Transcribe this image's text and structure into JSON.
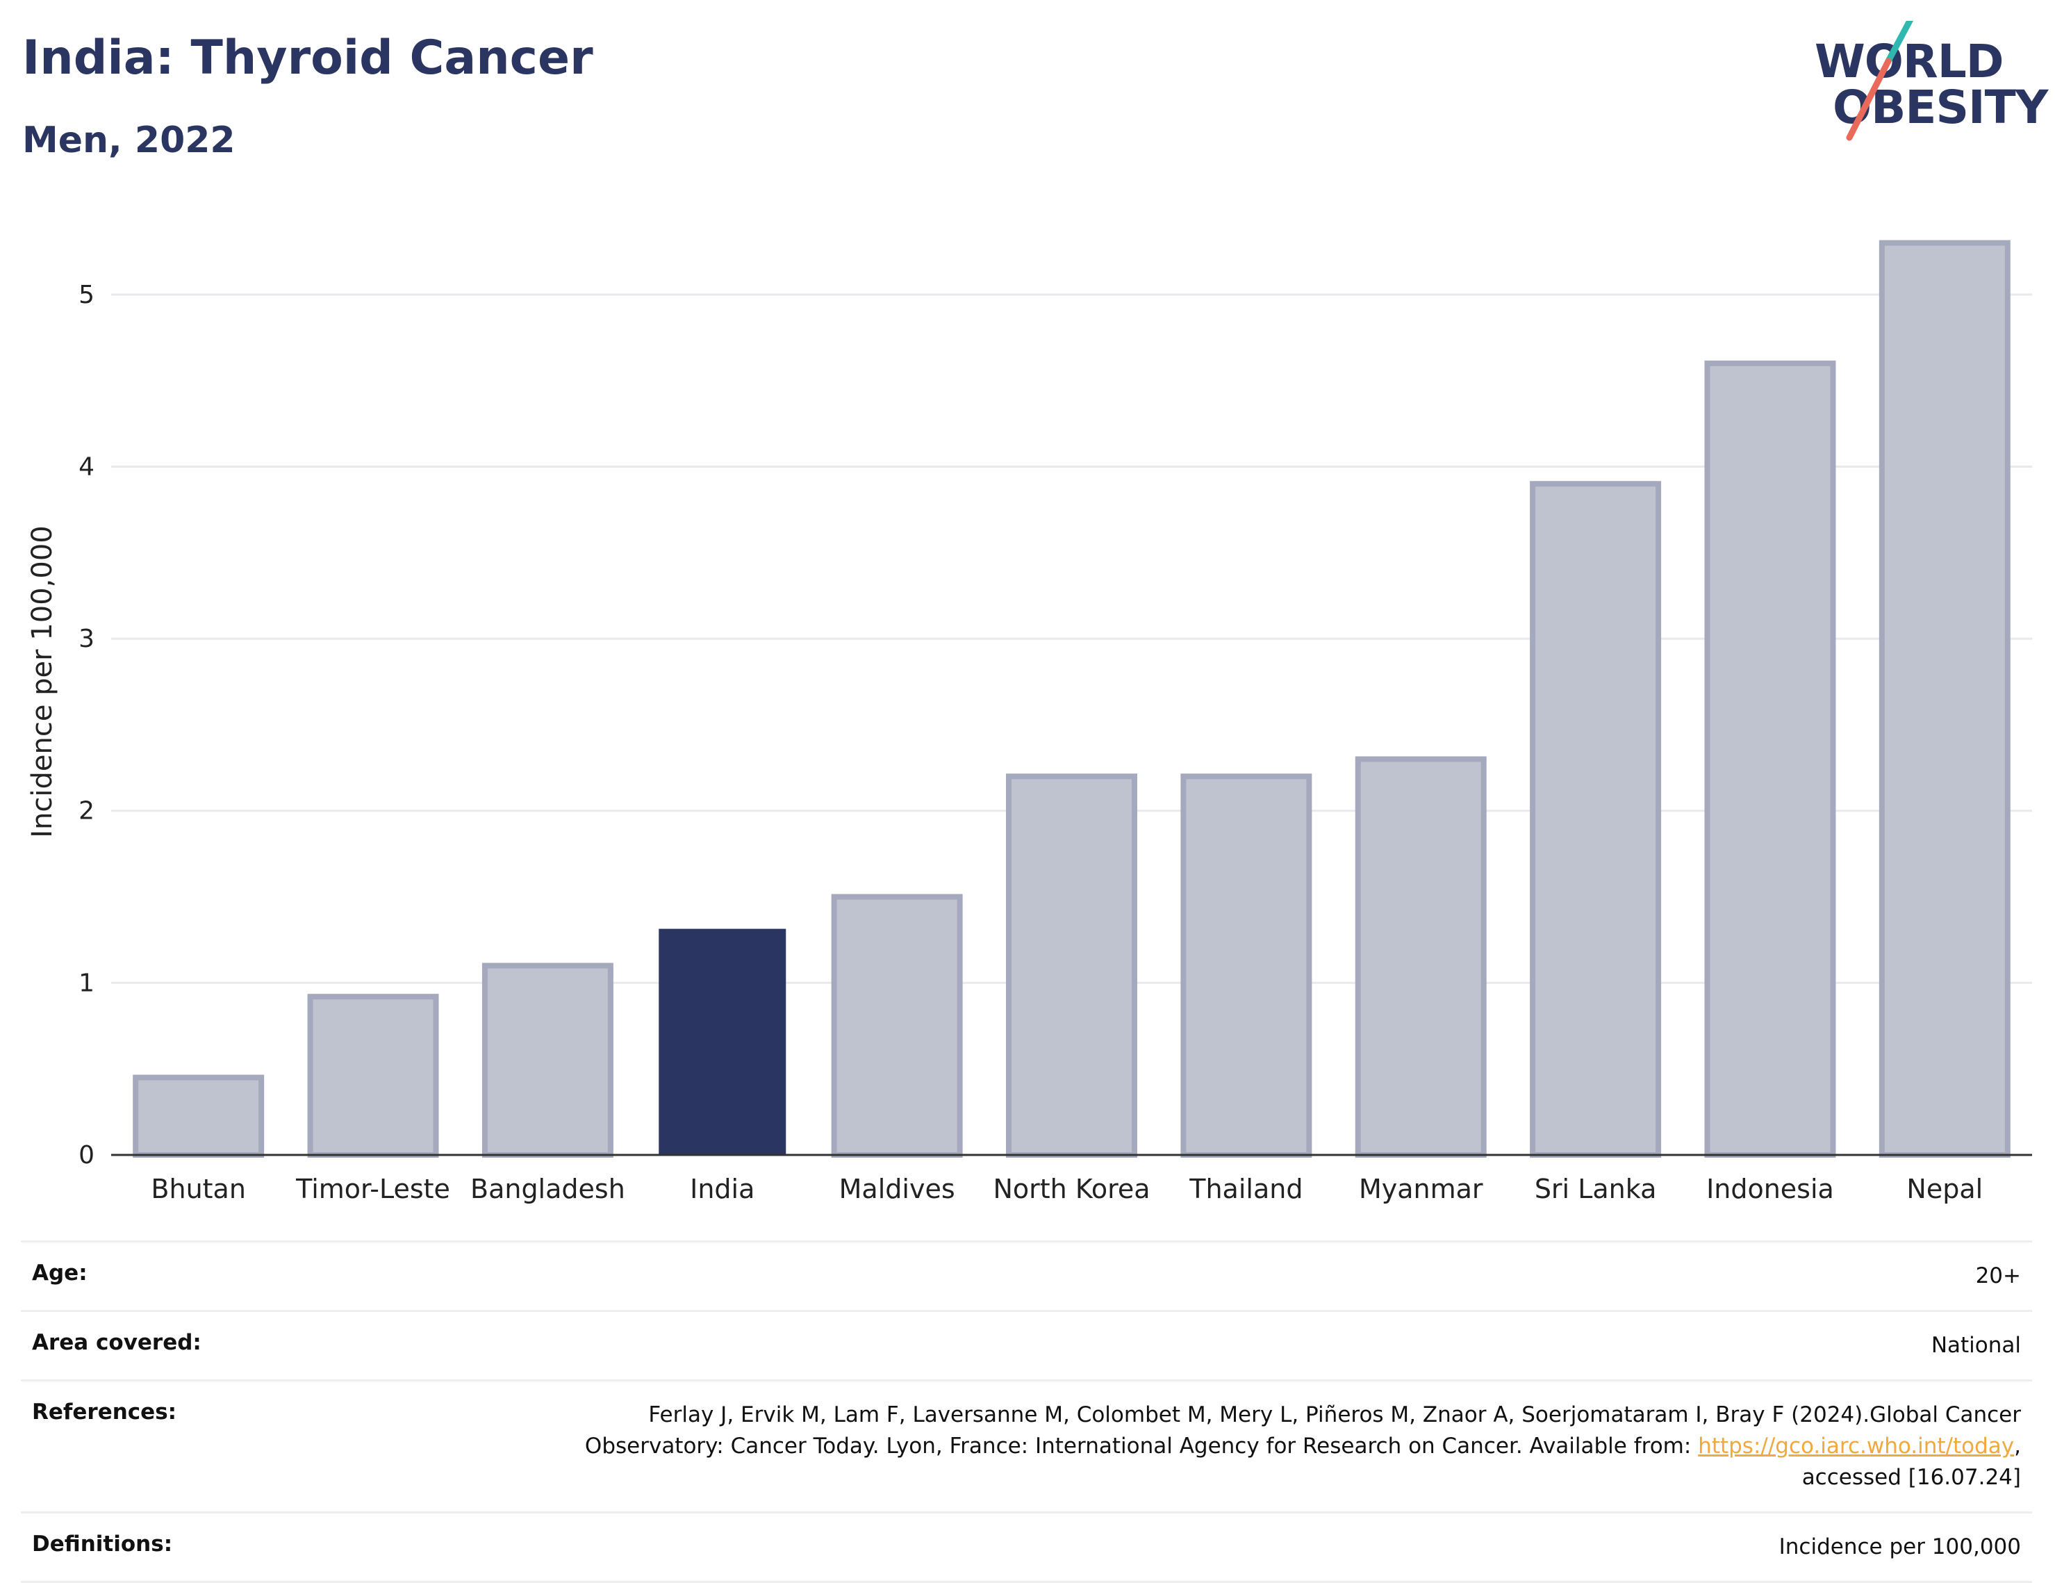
{
  "header": {
    "title": "India: Thyroid Cancer",
    "subtitle": "Men, 2022"
  },
  "logo": {
    "line1": "WORLD",
    "line2": "OBESITY",
    "accent_colors": [
      "#2fb8b0",
      "#e96a5a"
    ]
  },
  "chart_data": {
    "type": "bar",
    "categories": [
      "Bhutan",
      "Timor-Leste",
      "Bangladesh",
      "India",
      "Maldives",
      "North Korea",
      "Thailand",
      "Myanmar",
      "Sri Lanka",
      "Indonesia",
      "Nepal"
    ],
    "values": [
      0.45,
      0.92,
      1.1,
      1.31,
      1.5,
      2.2,
      2.2,
      2.3,
      3.9,
      4.6,
      5.3
    ],
    "highlight": "India",
    "title": "India: Thyroid Cancer",
    "subtitle": "Men, 2022",
    "xlabel": "",
    "ylabel": "Incidence per 100,000",
    "ylim": [
      0,
      5.5
    ],
    "yticks": [
      0,
      1,
      2,
      3,
      4,
      5
    ],
    "grid": true,
    "colors": {
      "highlight": "#2b3561",
      "default_fill": "#bfc2cf",
      "default_stroke": "#a5a9bd"
    }
  },
  "meta": {
    "age": {
      "label": "Age:",
      "value": "20+"
    },
    "area": {
      "label": "Area covered:",
      "value": "National"
    },
    "references": {
      "label": "References:",
      "line1": "Ferlay J, Ervik M, Lam F, Laversanne M, Colombet M, Mery L, Piñeros M, Znaor A, Soerjomataram I, Bray F (2024).Global Cancer",
      "line2_pre": "Observatory: Cancer Today. Lyon, France: International Agency for Research on Cancer. Available from: ",
      "link": "https://gco.iarc.who.int/today",
      "line2_post": ",",
      "line3": "accessed [16.07.24]"
    },
    "definitions": {
      "label": "Definitions:",
      "value": "Incidence per 100,000"
    }
  }
}
